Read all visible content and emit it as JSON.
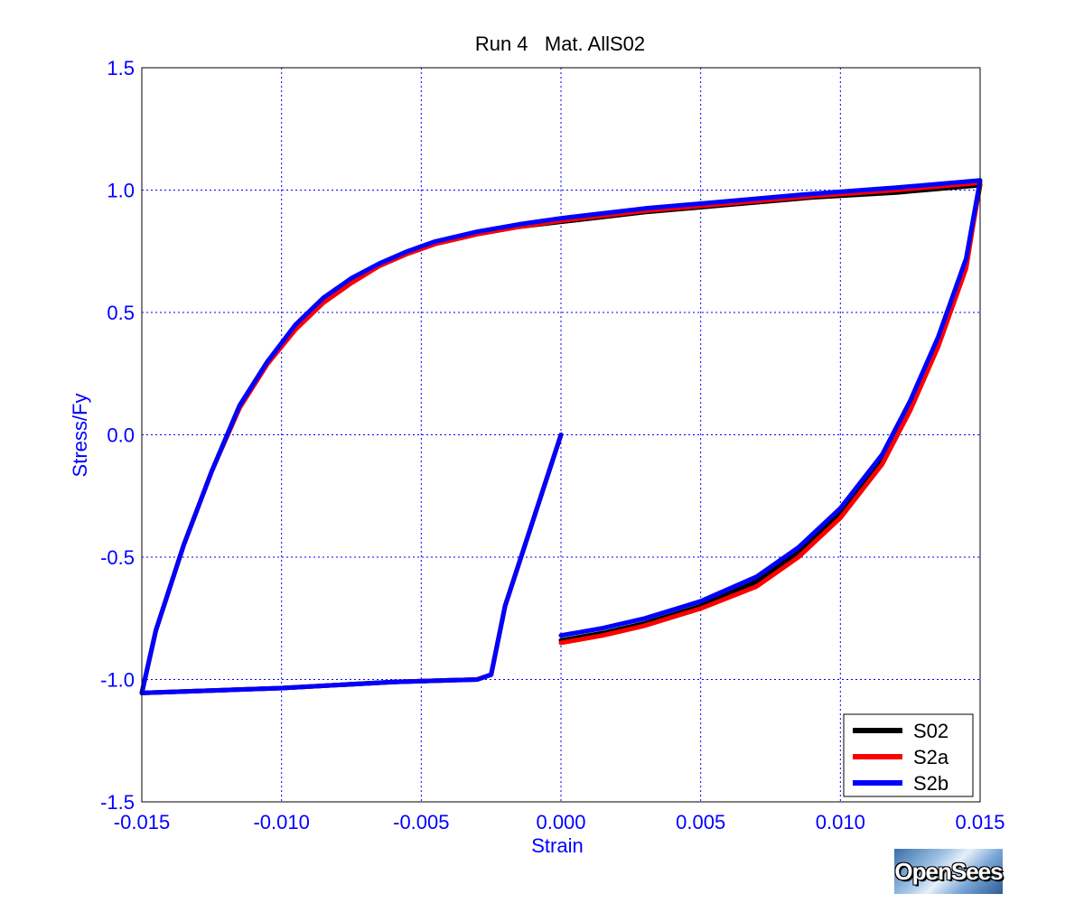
{
  "chart_data": {
    "type": "line",
    "title": "Run 4   Mat. AllS02",
    "xlabel": "Strain",
    "ylabel": "Stress/Fy",
    "xlim": [
      -0.015,
      0.015
    ],
    "ylim": [
      -1.5,
      1.5
    ],
    "xticks": [
      "-0.015",
      "-0.010",
      "-0.005",
      "0.000",
      "0.005",
      "0.010",
      "0.015"
    ],
    "xtick_values": [
      -0.015,
      -0.01,
      -0.005,
      0.0,
      0.005,
      0.01,
      0.015
    ],
    "yticks": [
      "1.5",
      "1.0",
      "0.5",
      "0.0",
      "-0.5",
      "-1.0",
      "-1.5"
    ],
    "ytick_values": [
      1.5,
      1.0,
      0.5,
      0.0,
      -0.5,
      -1.0,
      -1.5
    ],
    "grid": true,
    "legend_position": "bottom-right",
    "series": [
      {
        "name": "S02",
        "color": "#000000",
        "points": [
          [
            0.0,
            0.0
          ],
          [
            -0.002,
            -0.7
          ],
          [
            -0.0025,
            -0.98
          ],
          [
            -0.003,
            -1.0
          ],
          [
            -0.006,
            -1.01
          ],
          [
            -0.01,
            -1.035
          ],
          [
            -0.015,
            -1.055
          ],
          [
            -0.0145,
            -0.8
          ],
          [
            -0.0135,
            -0.45
          ],
          [
            -0.0125,
            -0.15
          ],
          [
            -0.0115,
            0.12
          ],
          [
            -0.0105,
            0.3
          ],
          [
            -0.0095,
            0.44
          ],
          [
            -0.0085,
            0.55
          ],
          [
            -0.0075,
            0.63
          ],
          [
            -0.0065,
            0.69
          ],
          [
            -0.0055,
            0.74
          ],
          [
            -0.0045,
            0.78
          ],
          [
            -0.003,
            0.82
          ],
          [
            -0.0015,
            0.85
          ],
          [
            0.0,
            0.87
          ],
          [
            0.003,
            0.91
          ],
          [
            0.006,
            0.94
          ],
          [
            0.009,
            0.97
          ],
          [
            0.012,
            0.99
          ],
          [
            0.015,
            1.02
          ],
          [
            0.0145,
            0.7
          ],
          [
            0.0135,
            0.38
          ],
          [
            0.0125,
            0.12
          ],
          [
            0.0115,
            -0.1
          ],
          [
            0.01,
            -0.32
          ],
          [
            0.0085,
            -0.48
          ],
          [
            0.007,
            -0.6
          ],
          [
            0.005,
            -0.7
          ],
          [
            0.003,
            -0.77
          ],
          [
            0.0015,
            -0.81
          ],
          [
            0.0,
            -0.84
          ]
        ]
      },
      {
        "name": "S2a",
        "color": "#ff0000",
        "points": [
          [
            0.0,
            0.0
          ],
          [
            -0.002,
            -0.7
          ],
          [
            -0.0025,
            -0.98
          ],
          [
            -0.003,
            -1.0
          ],
          [
            -0.006,
            -1.01
          ],
          [
            -0.01,
            -1.035
          ],
          [
            -0.015,
            -1.055
          ],
          [
            -0.0145,
            -0.8
          ],
          [
            -0.0135,
            -0.45
          ],
          [
            -0.0125,
            -0.15
          ],
          [
            -0.0115,
            0.11
          ],
          [
            -0.0105,
            0.29
          ],
          [
            -0.0095,
            0.43
          ],
          [
            -0.0085,
            0.54
          ],
          [
            -0.0075,
            0.62
          ],
          [
            -0.0065,
            0.69
          ],
          [
            -0.0055,
            0.74
          ],
          [
            -0.0045,
            0.78
          ],
          [
            -0.003,
            0.82
          ],
          [
            -0.0015,
            0.85
          ],
          [
            0.0,
            0.875
          ],
          [
            0.003,
            0.915
          ],
          [
            0.006,
            0.945
          ],
          [
            0.009,
            0.975
          ],
          [
            0.012,
            1.0
          ],
          [
            0.015,
            1.03
          ],
          [
            0.0145,
            0.68
          ],
          [
            0.0135,
            0.36
          ],
          [
            0.0125,
            0.1
          ],
          [
            0.0115,
            -0.12
          ],
          [
            0.01,
            -0.34
          ],
          [
            0.0085,
            -0.5
          ],
          [
            0.007,
            -0.62
          ],
          [
            0.005,
            -0.71
          ],
          [
            0.003,
            -0.78
          ],
          [
            0.0015,
            -0.82
          ],
          [
            0.0,
            -0.85
          ]
        ]
      },
      {
        "name": "S2b",
        "color": "#0000ff",
        "points": [
          [
            0.0,
            0.0
          ],
          [
            -0.002,
            -0.7
          ],
          [
            -0.0025,
            -0.98
          ],
          [
            -0.003,
            -1.0
          ],
          [
            -0.006,
            -1.01
          ],
          [
            -0.01,
            -1.035
          ],
          [
            -0.015,
            -1.055
          ],
          [
            -0.0145,
            -0.8
          ],
          [
            -0.0135,
            -0.45
          ],
          [
            -0.0125,
            -0.15
          ],
          [
            -0.0115,
            0.12
          ],
          [
            -0.0105,
            0.3
          ],
          [
            -0.0095,
            0.45
          ],
          [
            -0.0085,
            0.56
          ],
          [
            -0.0075,
            0.64
          ],
          [
            -0.0065,
            0.7
          ],
          [
            -0.0055,
            0.75
          ],
          [
            -0.0045,
            0.79
          ],
          [
            -0.003,
            0.83
          ],
          [
            -0.0015,
            0.86
          ],
          [
            0.0,
            0.885
          ],
          [
            0.003,
            0.925
          ],
          [
            0.006,
            0.955
          ],
          [
            0.009,
            0.985
          ],
          [
            0.012,
            1.01
          ],
          [
            0.015,
            1.04
          ],
          [
            0.0145,
            0.72
          ],
          [
            0.0135,
            0.4
          ],
          [
            0.0125,
            0.14
          ],
          [
            0.0115,
            -0.08
          ],
          [
            0.01,
            -0.3
          ],
          [
            0.0085,
            -0.46
          ],
          [
            0.007,
            -0.58
          ],
          [
            0.005,
            -0.68
          ],
          [
            0.003,
            -0.75
          ],
          [
            0.0015,
            -0.79
          ],
          [
            0.0,
            -0.82
          ]
        ]
      }
    ]
  },
  "logo": {
    "text": "OpenSees"
  }
}
